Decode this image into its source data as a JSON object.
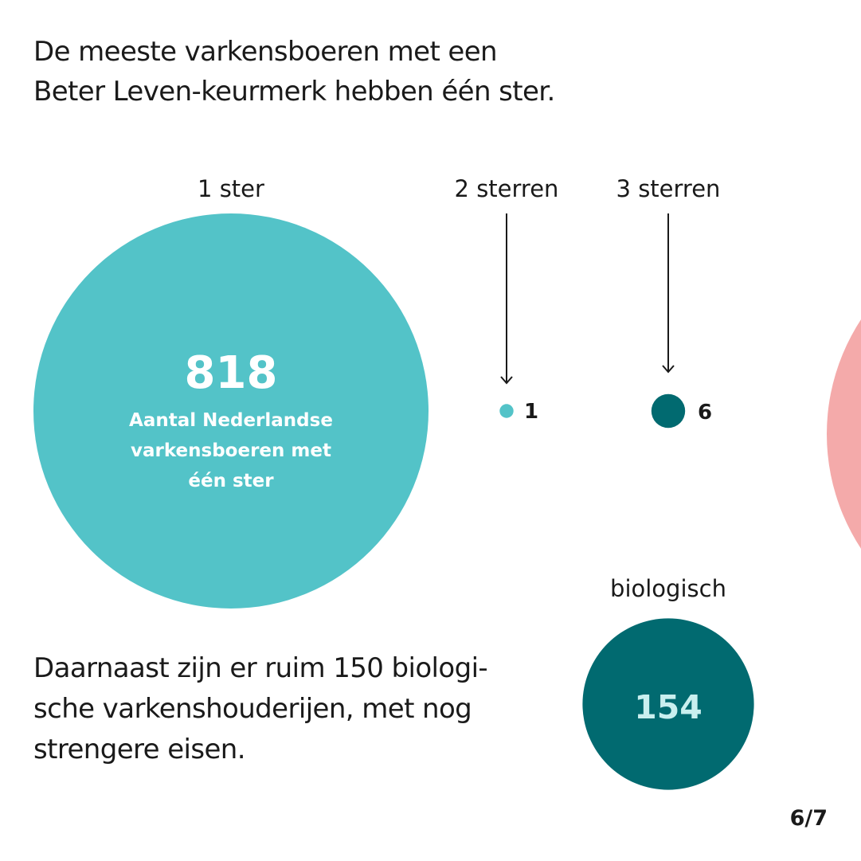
{
  "title_lines": [
    "De meeste varkensboeren met een",
    "Beter Leven-keurmerk hebben één ster."
  ],
  "chart_data": {
    "type": "bubble",
    "title": "De meeste varkensboeren met een Beter Leven-keurmerk hebben één ster.",
    "categories": [
      "1 ster",
      "2 sterren",
      "3 sterren",
      "biologisch"
    ],
    "values": [
      818,
      1,
      6,
      154
    ],
    "big_bubble_desc": [
      "Aantal Nederlandse",
      "varkensboeren met",
      "één ster"
    ]
  },
  "note_lines": [
    "Daarnaast zijn er ruim 150 biologi-",
    "sche varkenshouderijen, met nog",
    "strengere eisen."
  ],
  "pager": "6/7",
  "colors": {
    "one_star": "#53c3c8",
    "dark": "#016a70",
    "value_light": "#c9efef",
    "pink": "#f4aaaa",
    "text": "#1a1a1a"
  }
}
